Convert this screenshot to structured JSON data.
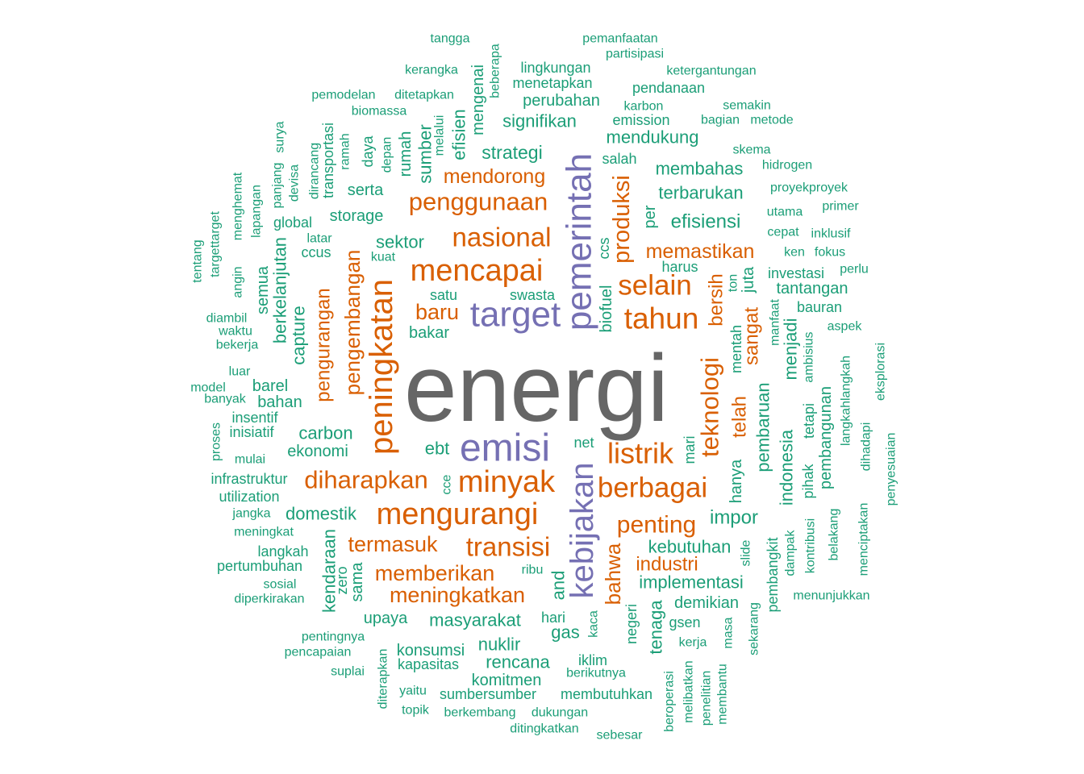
{
  "colors": {
    "center": "#666666",
    "purple": "#7570b3",
    "orange": "#d95f02",
    "green": "#1b9e77"
  },
  "words": [
    {
      "text": "energi",
      "color": "center"
    },
    {
      "text": "emisi",
      "color": "purple"
    },
    {
      "text": "target",
      "color": "purple"
    },
    {
      "text": "pemerintah",
      "color": "purple"
    },
    {
      "text": "kebijakan",
      "color": "purple"
    },
    {
      "text": "mencapai",
      "color": "orange"
    },
    {
      "text": "mengurangi",
      "color": "orange"
    },
    {
      "text": "minyak",
      "color": "orange"
    },
    {
      "text": "peningkatan",
      "color": "orange"
    },
    {
      "text": "nasional",
      "color": "orange"
    },
    {
      "text": "penggunaan",
      "color": "orange"
    },
    {
      "text": "tahun",
      "color": "orange"
    },
    {
      "text": "selain",
      "color": "orange"
    },
    {
      "text": "listrik",
      "color": "orange"
    },
    {
      "text": "berbagai",
      "color": "orange"
    },
    {
      "text": "transisi",
      "color": "orange"
    },
    {
      "text": "diharapkan",
      "color": "orange"
    },
    {
      "text": "teknologi",
      "color": "orange"
    },
    {
      "text": "produksi",
      "color": "orange"
    },
    {
      "text": "penting",
      "color": "orange"
    },
    {
      "text": "termasuk",
      "color": "orange"
    },
    {
      "text": "memberikan",
      "color": "orange"
    },
    {
      "text": "meningkatkan",
      "color": "orange"
    },
    {
      "text": "mendorong",
      "color": "orange"
    },
    {
      "text": "memastikan",
      "color": "orange"
    },
    {
      "text": "baru",
      "color": "orange"
    },
    {
      "text": "pengembangan",
      "color": "orange"
    },
    {
      "text": "pengurangan",
      "color": "orange"
    },
    {
      "text": "bersih",
      "color": "orange"
    },
    {
      "text": "sangat",
      "color": "orange"
    },
    {
      "text": "telah",
      "color": "orange"
    },
    {
      "text": "industri",
      "color": "orange"
    },
    {
      "text": "bahwa",
      "color": "orange"
    },
    {
      "text": "strategi",
      "color": "green"
    },
    {
      "text": "signifikan",
      "color": "green"
    },
    {
      "text": "perubahan",
      "color": "green"
    },
    {
      "text": "menetapkan",
      "color": "green"
    },
    {
      "text": "lingkungan",
      "color": "green"
    },
    {
      "text": "pemanfaatan",
      "color": "green"
    },
    {
      "text": "partisipasi",
      "color": "green"
    },
    {
      "text": "ketergantungan",
      "color": "green"
    },
    {
      "text": "pendanaan",
      "color": "green"
    },
    {
      "text": "karbon",
      "color": "green"
    },
    {
      "text": "emission",
      "color": "green"
    },
    {
      "text": "semakin",
      "color": "green"
    },
    {
      "text": "bagian",
      "color": "green"
    },
    {
      "text": "metode",
      "color": "green"
    },
    {
      "text": "mendukung",
      "color": "green"
    },
    {
      "text": "salah",
      "color": "green"
    },
    {
      "text": "skema",
      "color": "green"
    },
    {
      "text": "membahas",
      "color": "green"
    },
    {
      "text": "hidrogen",
      "color": "green"
    },
    {
      "text": "terbarukan",
      "color": "green"
    },
    {
      "text": "proyekproyek",
      "color": "green"
    },
    {
      "text": "efisiensi",
      "color": "green"
    },
    {
      "text": "utama",
      "color": "green"
    },
    {
      "text": "primer",
      "color": "green"
    },
    {
      "text": "cepat",
      "color": "green"
    },
    {
      "text": "inklusif",
      "color": "green"
    },
    {
      "text": "ken",
      "color": "green"
    },
    {
      "text": "fokus",
      "color": "green"
    },
    {
      "text": "harus",
      "color": "green"
    },
    {
      "text": "perlu",
      "color": "green"
    },
    {
      "text": "investasi",
      "color": "green"
    },
    {
      "text": "tantangan",
      "color": "green"
    },
    {
      "text": "bauran",
      "color": "green"
    },
    {
      "text": "aspek",
      "color": "green"
    },
    {
      "text": "tangga",
      "color": "green"
    },
    {
      "text": "kerangka",
      "color": "green"
    },
    {
      "text": "pemodelan",
      "color": "green"
    },
    {
      "text": "ditetapkan",
      "color": "green"
    },
    {
      "text": "biomassa",
      "color": "green"
    },
    {
      "text": "serta",
      "color": "green"
    },
    {
      "text": "storage",
      "color": "green"
    },
    {
      "text": "sektor",
      "color": "green"
    },
    {
      "text": "kuat",
      "color": "green"
    },
    {
      "text": "latar",
      "color": "green"
    },
    {
      "text": "ccus",
      "color": "green"
    },
    {
      "text": "global",
      "color": "green"
    },
    {
      "text": "satu",
      "color": "green"
    },
    {
      "text": "swasta",
      "color": "green"
    },
    {
      "text": "bakar",
      "color": "green"
    },
    {
      "text": "diambil",
      "color": "green"
    },
    {
      "text": "waktu",
      "color": "green"
    },
    {
      "text": "bekerja",
      "color": "green"
    },
    {
      "text": "luar",
      "color": "green"
    },
    {
      "text": "model",
      "color": "green"
    },
    {
      "text": "banyak",
      "color": "green"
    },
    {
      "text": "barel",
      "color": "green"
    },
    {
      "text": "bahan",
      "color": "green"
    },
    {
      "text": "insentif",
      "color": "green"
    },
    {
      "text": "inisiatif",
      "color": "green"
    },
    {
      "text": "carbon",
      "color": "green"
    },
    {
      "text": "ekonomi",
      "color": "green"
    },
    {
      "text": "ebt",
      "color": "green"
    },
    {
      "text": "mulai",
      "color": "green"
    },
    {
      "text": "infrastruktur",
      "color": "green"
    },
    {
      "text": "utilization",
      "color": "green"
    },
    {
      "text": "jangka",
      "color": "green"
    },
    {
      "text": "domestik",
      "color": "green"
    },
    {
      "text": "meningkat",
      "color": "green"
    },
    {
      "text": "langkah",
      "color": "green"
    },
    {
      "text": "pertumbuhan",
      "color": "green"
    },
    {
      "text": "sosial",
      "color": "green"
    },
    {
      "text": "diperkirakan",
      "color": "green"
    },
    {
      "text": "upaya",
      "color": "green"
    },
    {
      "text": "masyarakat",
      "color": "green"
    },
    {
      "text": "pentingnya",
      "color": "green"
    },
    {
      "text": "pencapaian",
      "color": "green"
    },
    {
      "text": "konsumsi",
      "color": "green"
    },
    {
      "text": "nuklir",
      "color": "green"
    },
    {
      "text": "suplai",
      "color": "green"
    },
    {
      "text": "kapasitas",
      "color": "green"
    },
    {
      "text": "rencana",
      "color": "green"
    },
    {
      "text": "komitmen",
      "color": "green"
    },
    {
      "text": "yaitu",
      "color": "green"
    },
    {
      "text": "sumbersumber",
      "color": "green"
    },
    {
      "text": "topik",
      "color": "green"
    },
    {
      "text": "berkembang",
      "color": "green"
    },
    {
      "text": "dukungan",
      "color": "green"
    },
    {
      "text": "ditingkatkan",
      "color": "green"
    },
    {
      "text": "sebesar",
      "color": "green"
    },
    {
      "text": "membutuhkan",
      "color": "green"
    },
    {
      "text": "berikutnya",
      "color": "green"
    },
    {
      "text": "iklim",
      "color": "green"
    },
    {
      "text": "gas",
      "color": "green"
    },
    {
      "text": "hari",
      "color": "green"
    },
    {
      "text": "ribu",
      "color": "green"
    },
    {
      "text": "net",
      "color": "green"
    },
    {
      "text": "impor",
      "color": "green"
    },
    {
      "text": "kebutuhan",
      "color": "green"
    },
    {
      "text": "implementasi",
      "color": "green"
    },
    {
      "text": "demikian",
      "color": "green"
    },
    {
      "text": "gsen",
      "color": "green"
    },
    {
      "text": "kerja",
      "color": "green"
    },
    {
      "text": "menunjukkan",
      "color": "green"
    },
    {
      "text": "eksplorasi",
      "color": "green"
    },
    {
      "text": "penyesuaian",
      "color": "green"
    },
    {
      "text": "menciptakan",
      "color": "green"
    },
    {
      "text": "langkahlangkah",
      "color": "green"
    },
    {
      "text": "dihadapi",
      "color": "green"
    },
    {
      "text": "belakang",
      "color": "green"
    },
    {
      "text": "pembangunan",
      "color": "green"
    },
    {
      "text": "pihak",
      "color": "green"
    },
    {
      "text": "tetapi",
      "color": "green"
    },
    {
      "text": "kontribusi",
      "color": "green"
    },
    {
      "text": "ambisius",
      "color": "green"
    },
    {
      "text": "menjadi",
      "color": "green"
    },
    {
      "text": "indonesia",
      "color": "green"
    },
    {
      "text": "dampak",
      "color": "green"
    },
    {
      "text": "pembaruan",
      "color": "green"
    },
    {
      "text": "pembangkit",
      "color": "green"
    },
    {
      "text": "sekarang",
      "color": "green"
    },
    {
      "text": "manfaat",
      "color": "green"
    },
    {
      "text": "mentah",
      "color": "green"
    },
    {
      "text": "mari",
      "color": "green"
    },
    {
      "text": "hanya",
      "color": "green"
    },
    {
      "text": "slide",
      "color": "green"
    },
    {
      "text": "masa",
      "color": "green"
    },
    {
      "text": "tenaga",
      "color": "green"
    },
    {
      "text": "negeri",
      "color": "green"
    },
    {
      "text": "kaca",
      "color": "green"
    },
    {
      "text": "beroperasi",
      "color": "green"
    },
    {
      "text": "melibatkan",
      "color": "green"
    },
    {
      "text": "penelitian",
      "color": "green"
    },
    {
      "text": "membantu",
      "color": "green"
    },
    {
      "text": "ton",
      "color": "green"
    },
    {
      "text": "juta",
      "color": "green"
    },
    {
      "text": "per",
      "color": "green"
    },
    {
      "text": "ccs",
      "color": "green"
    },
    {
      "text": "biofuel",
      "color": "green"
    },
    {
      "text": "and",
      "color": "green"
    },
    {
      "text": "cce",
      "color": "green"
    },
    {
      "text": "kendaraan",
      "color": "green"
    },
    {
      "text": "zero",
      "color": "green"
    },
    {
      "text": "sama",
      "color": "green"
    },
    {
      "text": "diterapkan",
      "color": "green"
    },
    {
      "text": "capture",
      "color": "green"
    },
    {
      "text": "berkelanjutan",
      "color": "green"
    },
    {
      "text": "semua",
      "color": "green"
    },
    {
      "text": "angin",
      "color": "green"
    },
    {
      "text": "targettarget",
      "color": "green"
    },
    {
      "text": "tentang",
      "color": "green"
    },
    {
      "text": "proses",
      "color": "green"
    },
    {
      "text": "lapangan",
      "color": "green"
    },
    {
      "text": "menghemat",
      "color": "green"
    },
    {
      "text": "panjang",
      "color": "green"
    },
    {
      "text": "surya",
      "color": "green"
    },
    {
      "text": "devisa",
      "color": "green"
    },
    {
      "text": "dirancang",
      "color": "green"
    },
    {
      "text": "transportasi",
      "color": "green"
    },
    {
      "text": "ramah",
      "color": "green"
    },
    {
      "text": "daya",
      "color": "green"
    },
    {
      "text": "depan",
      "color": "green"
    },
    {
      "text": "rumah",
      "color": "green"
    },
    {
      "text": "sumber",
      "color": "green"
    },
    {
      "text": "melalui",
      "color": "green"
    },
    {
      "text": "efisien",
      "color": "green"
    },
    {
      "text": "mengenai",
      "color": "green"
    },
    {
      "text": "beberapa",
      "color": "green"
    }
  ]
}
